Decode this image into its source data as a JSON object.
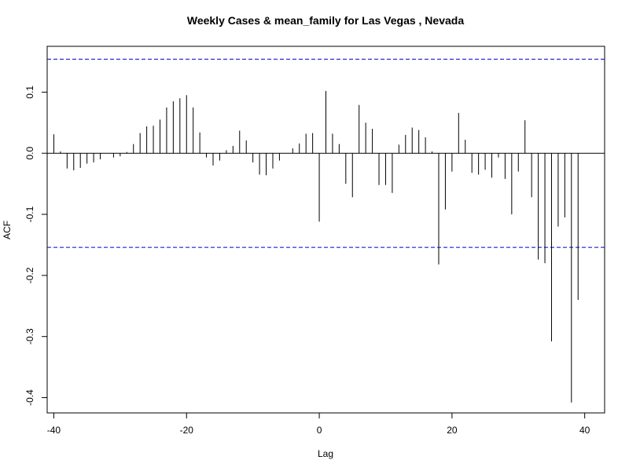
{
  "chart_data": {
    "type": "bar",
    "title": "Weekly Cases & mean_family for Las Vegas , Nevada",
    "xlabel": "Lag",
    "ylabel": "ACF",
    "xlim": [
      -41,
      43
    ],
    "ylim": [
      -0.425,
      0.175
    ],
    "x_ticks": [
      -40,
      -20,
      0,
      20,
      40
    ],
    "x_tick_labels": [
      "-40",
      "-20",
      "0",
      "20",
      "40"
    ],
    "y_ticks": [
      -0.4,
      -0.3,
      -0.2,
      -0.1,
      0.0,
      0.1
    ],
    "y_tick_labels": [
      "-0.4",
      "-0.3",
      "-0.2",
      "-0.1",
      "0.0",
      "0.1"
    ],
    "confidence_bounds": [
      0.154,
      -0.154
    ],
    "zero_line": true,
    "colors": {
      "bars": "#000000",
      "confidence": "#0000CD",
      "axes": "#000000"
    },
    "lags": [
      -40,
      -39,
      -38,
      -37,
      -36,
      -35,
      -34,
      -33,
      -32,
      -31,
      -30,
      -29,
      -28,
      -27,
      -26,
      -25,
      -24,
      -23,
      -22,
      -21,
      -20,
      -19,
      -18,
      -17,
      -16,
      -15,
      -14,
      -13,
      -12,
      -11,
      -10,
      -9,
      -8,
      -7,
      -6,
      -5,
      -4,
      -3,
      -2,
      -1,
      0,
      1,
      2,
      3,
      4,
      5,
      6,
      7,
      8,
      9,
      10,
      11,
      12,
      13,
      14,
      15,
      16,
      17,
      18,
      19,
      20,
      21,
      22,
      23,
      24,
      25,
      26,
      27,
      28,
      29,
      30,
      31,
      32,
      33,
      34,
      35,
      36,
      37,
      38,
      39,
      40
    ],
    "values": [
      0.031,
      0.003,
      -0.025,
      -0.028,
      -0.024,
      -0.017,
      -0.015,
      -0.01,
      0.0,
      -0.007,
      -0.005,
      0.002,
      0.015,
      0.033,
      0.044,
      0.045,
      0.055,
      0.075,
      0.085,
      0.09,
      0.095,
      0.075,
      0.034,
      -0.007,
      -0.02,
      -0.012,
      0.005,
      0.012,
      0.037,
      0.021,
      -0.015,
      -0.035,
      -0.036,
      -0.025,
      -0.012,
      0.0,
      0.008,
      0.016,
      0.032,
      0.033,
      -0.112,
      0.102,
      0.032,
      0.015,
      -0.05,
      -0.072,
      0.079,
      0.05,
      0.04,
      -0.052,
      -0.052,
      -0.065,
      0.014,
      0.03,
      0.042,
      0.038,
      0.026,
      0.003,
      -0.182,
      -0.092,
      -0.03,
      0.066,
      0.022,
      -0.032,
      -0.035,
      -0.027,
      -0.04,
      -0.007,
      -0.042,
      -0.1,
      -0.03,
      0.054,
      -0.072,
      -0.174,
      -0.18,
      -0.308,
      -0.12,
      -0.105,
      -0.408,
      -0.24,
      0.0
    ]
  }
}
